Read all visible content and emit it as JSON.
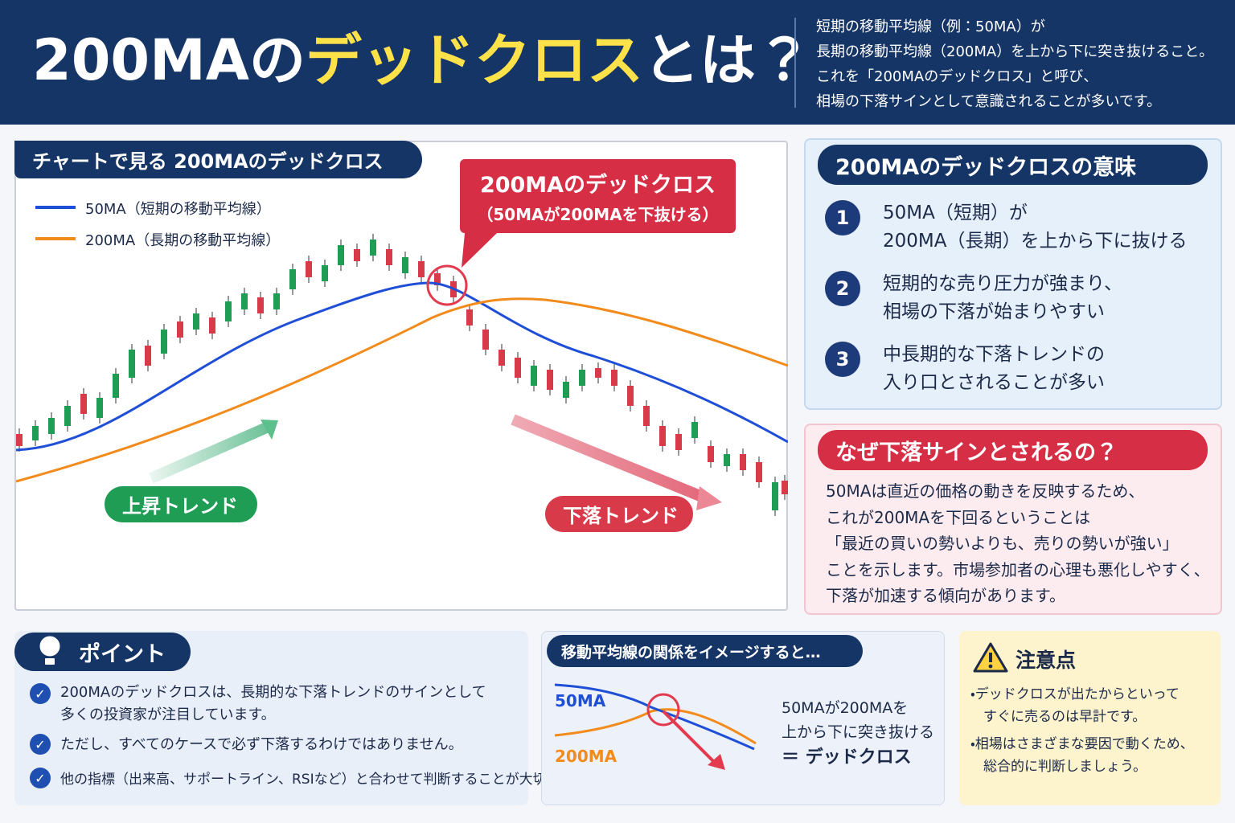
{
  "header": {
    "title_parts": [
      "200MAの",
      "デッドクロス",
      "とは？"
    ],
    "description": [
      "短期の移動平均線（例：50MA）が",
      "長期の移動平均線（200MA）を上から下に突き抜けること。",
      "これを「200MAのデッドクロス」と呼び、",
      "相場の下落サインとして意識されることが多いです。"
    ]
  },
  "chart_panel": {
    "label": "チャートで見る 200MAのデッドクロス",
    "legend": [
      "50MA（短期の移動平均線）",
      "200MA（長期の移動平均線）"
    ],
    "callout": {
      "title": "200MAのデッドクロス",
      "subtitle": "（50MAが200MAを下抜ける）"
    },
    "trend_labels": [
      "上昇トレンド",
      "下落トレンド"
    ]
  },
  "meaning": {
    "heading": "200MAのデッドクロスの意味",
    "items": [
      {
        "number": "1",
        "lines": [
          "50MA（短期）が",
          "200MA（長期）を上から下に抜ける"
        ]
      },
      {
        "number": "2",
        "lines": [
          "短期的な売り圧力が強まり、",
          "相場の下落が始まりやすい"
        ]
      },
      {
        "number": "3",
        "lines": [
          "中長期的な下落トレンドの",
          "入り口とされることが多い"
        ]
      }
    ]
  },
  "why": {
    "heading": "なぜ下落サインとされるの？",
    "lines": [
      "50MAは直近の価格の動きを反映するため、",
      "これが200MAを下回るということは",
      "「最近の買いの勢いよりも、売りの勢いが強い」",
      "ことを示します。市場参加者の心理も悪化しやすく、",
      "下落が加速する傾向があります。"
    ]
  },
  "point": {
    "heading": "ポイント",
    "items": [
      [
        "200MAのデッドクロスは、長期的な下落トレンドのサインとして",
        "多くの投資家が注目しています。"
      ],
      [
        "ただし、すべてのケースで必ず下落するわけではありません。"
      ],
      [
        "他の指標（出来高、サポートライン、RSIなど）と合わせて判断することが大切です。"
      ]
    ]
  },
  "image": {
    "heading": "移動平均線の関係をイメージすると…",
    "labels": [
      "50MA",
      "200MA"
    ],
    "lines": [
      "50MAが200MAを",
      "上から下に突き抜ける",
      "＝ デッドクロス"
    ]
  },
  "caution": {
    "heading": "注意点",
    "items": [
      [
        "・デッドクロスが出たからといって",
        "すぐに売るのは早計です。"
      ],
      [
        "・相場はさまざまな要因で動くため、",
        "総合的に判断しましょう。"
      ]
    ]
  }
}
